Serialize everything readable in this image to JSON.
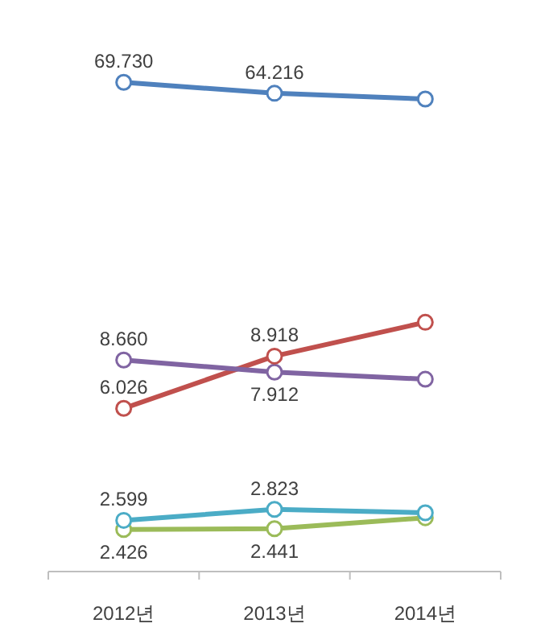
{
  "chart_data": {
    "type": "line",
    "categories": [
      "2012년",
      "2013년",
      "2014년"
    ],
    "log": true,
    "tick_labels": "x",
    "marker": "circle",
    "line_style": "solid",
    "series": [
      {
        "color": "#4f81bd",
        "values": [
          69.73,
          64.216,
          61.5
        ],
        "value_labels": [
          "69.730",
          "64.216",
          null
        ]
      },
      {
        "color": "#c0504d",
        "values": [
          6.026,
          8.918,
          11.5
        ],
        "value_labels": [
          "6.026",
          "8.918",
          null
        ]
      },
      {
        "color": "#8064a2",
        "values": [
          8.66,
          7.912,
          7.5
        ],
        "value_labels": [
          "8.660",
          "7.912",
          null
        ]
      },
      {
        "color": "#4bacc6",
        "values": [
          2.599,
          2.823,
          2.75
        ],
        "value_labels": [
          "2.599",
          "2.823",
          null
        ]
      },
      {
        "color": "#9bbb59",
        "values": [
          2.426,
          2.441,
          2.65
        ],
        "value_labels": [
          "2.426",
          "2.441",
          null
        ]
      }
    ]
  }
}
